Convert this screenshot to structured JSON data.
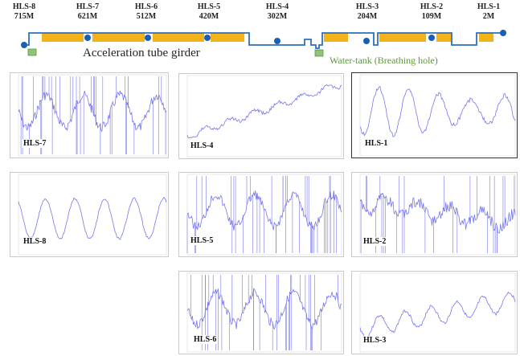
{
  "sensors": [
    {
      "name": "HLS-8",
      "dist": "715M"
    },
    {
      "name": "HLS-7",
      "dist": "621M"
    },
    {
      "name": "HLS-6",
      "dist": "512M"
    },
    {
      "name": "HLS-5",
      "dist": "420M"
    },
    {
      "name": "HLS-4",
      "dist": "302M"
    },
    {
      "name": "HLS-3",
      "dist": "204M"
    },
    {
      "name": "HLS-2",
      "dist": "109M"
    },
    {
      "name": "HLS-1",
      "dist": "2M"
    }
  ],
  "legend": {
    "girder_label": "Acceleration tube girder",
    "watertank_label": "Water-tank (Breathing hole)"
  },
  "panels": [
    {
      "label": "HLS-7",
      "kind": "noisy",
      "seed": 7
    },
    {
      "label": "HLS-4",
      "kind": "trend",
      "seed": 4
    },
    {
      "label": "HLS-1",
      "kind": "wave",
      "seed": 1
    },
    {
      "label": "HLS-8",
      "kind": "smooth",
      "seed": 8
    },
    {
      "label": "HLS-5",
      "kind": "noisy",
      "seed": 5
    },
    {
      "label": "HLS-2",
      "kind": "decay",
      "seed": 2
    },
    {
      "label": "HLS-6",
      "kind": "noisy",
      "seed": 6
    },
    {
      "label": "HLS-3",
      "kind": "rising",
      "seed": 3
    }
  ],
  "colors": {
    "pipe": "#2f6fbf",
    "girder": "#f2b31a",
    "sensor_dot": "#1a5fb4",
    "tank": "#8fc27a",
    "signal": "#7777ee"
  }
}
